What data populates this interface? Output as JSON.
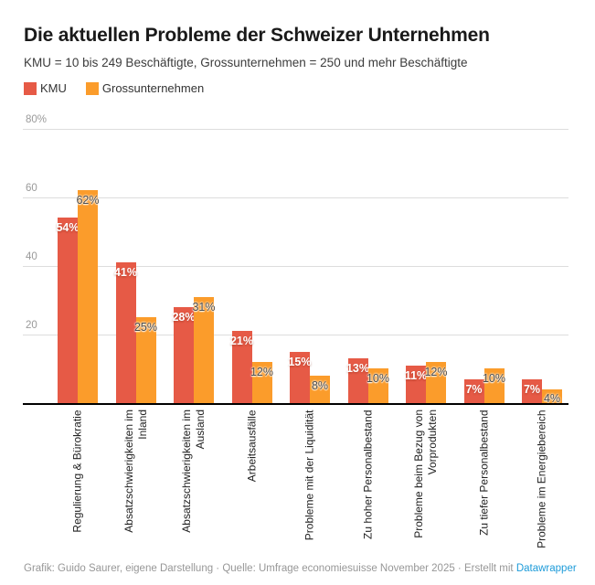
{
  "header": {
    "title": "Die aktuellen Probleme der Schweizer Unternehmen",
    "subtitle": "KMU = 10 bis 249 Beschäftigte, Grossunternehmen = 250 und mehr Beschäftigte"
  },
  "legend": {
    "items": [
      {
        "label": "KMU",
        "color": "#e65a46"
      },
      {
        "label": "Grossunternehmen",
        "color": "#fb9c2b"
      }
    ]
  },
  "chart_data": {
    "type": "bar",
    "title": "Die aktuellen Probleme der Schweizer Unternehmen",
    "subtitle": "KMU = 10 bis 249 Beschäftigte, Grossunternehmen = 250 und mehr Beschäftigte",
    "categories": [
      "Regulierung & Bürokratie",
      "Absatzschwierigkeiten im\nInland",
      "Absatzschwierigkeiten im\nAusland",
      "Arbeitsausfälle",
      "Probleme mit der Liquidität",
      "Zu hoher Personalbestand",
      "Probleme beim Bezug von\nVorprodukten",
      "Zu tiefer Personalbestand",
      "Probleme im Energiebereich"
    ],
    "series": [
      {
        "name": "KMU",
        "color": "#e65a46",
        "values": [
          54,
          41,
          28,
          21,
          15,
          13,
          11,
          7,
          7
        ]
      },
      {
        "name": "Grossunternehmen",
        "color": "#fb9c2b",
        "values": [
          62,
          25,
          31,
          12,
          8,
          10,
          12,
          10,
          4
        ]
      }
    ],
    "value_suffix": "%",
    "ylim": [
      0,
      80
    ],
    "y_ticks": [
      {
        "value": 80,
        "label": "80%"
      },
      {
        "value": 60,
        "label": "60"
      },
      {
        "value": 40,
        "label": "40"
      },
      {
        "value": 20,
        "label": "20"
      }
    ],
    "grid": true,
    "legend_position": "top-left",
    "xlabel": "",
    "ylabel": ""
  },
  "colors": {
    "kmu": "#e65a46",
    "grossunternehmen": "#fb9c2b",
    "axis": "#000000",
    "gridline": "#dddddd",
    "tick_text": "#9a9a9a"
  },
  "footer": {
    "credit": "Grafik: Guido Saurer, eigene Darstellung · Quelle: Umfrage economiesuisse November 2025 · Erstellt mit ",
    "link_label": "Datawrapper",
    "link_color": "#1d9bd9"
  }
}
